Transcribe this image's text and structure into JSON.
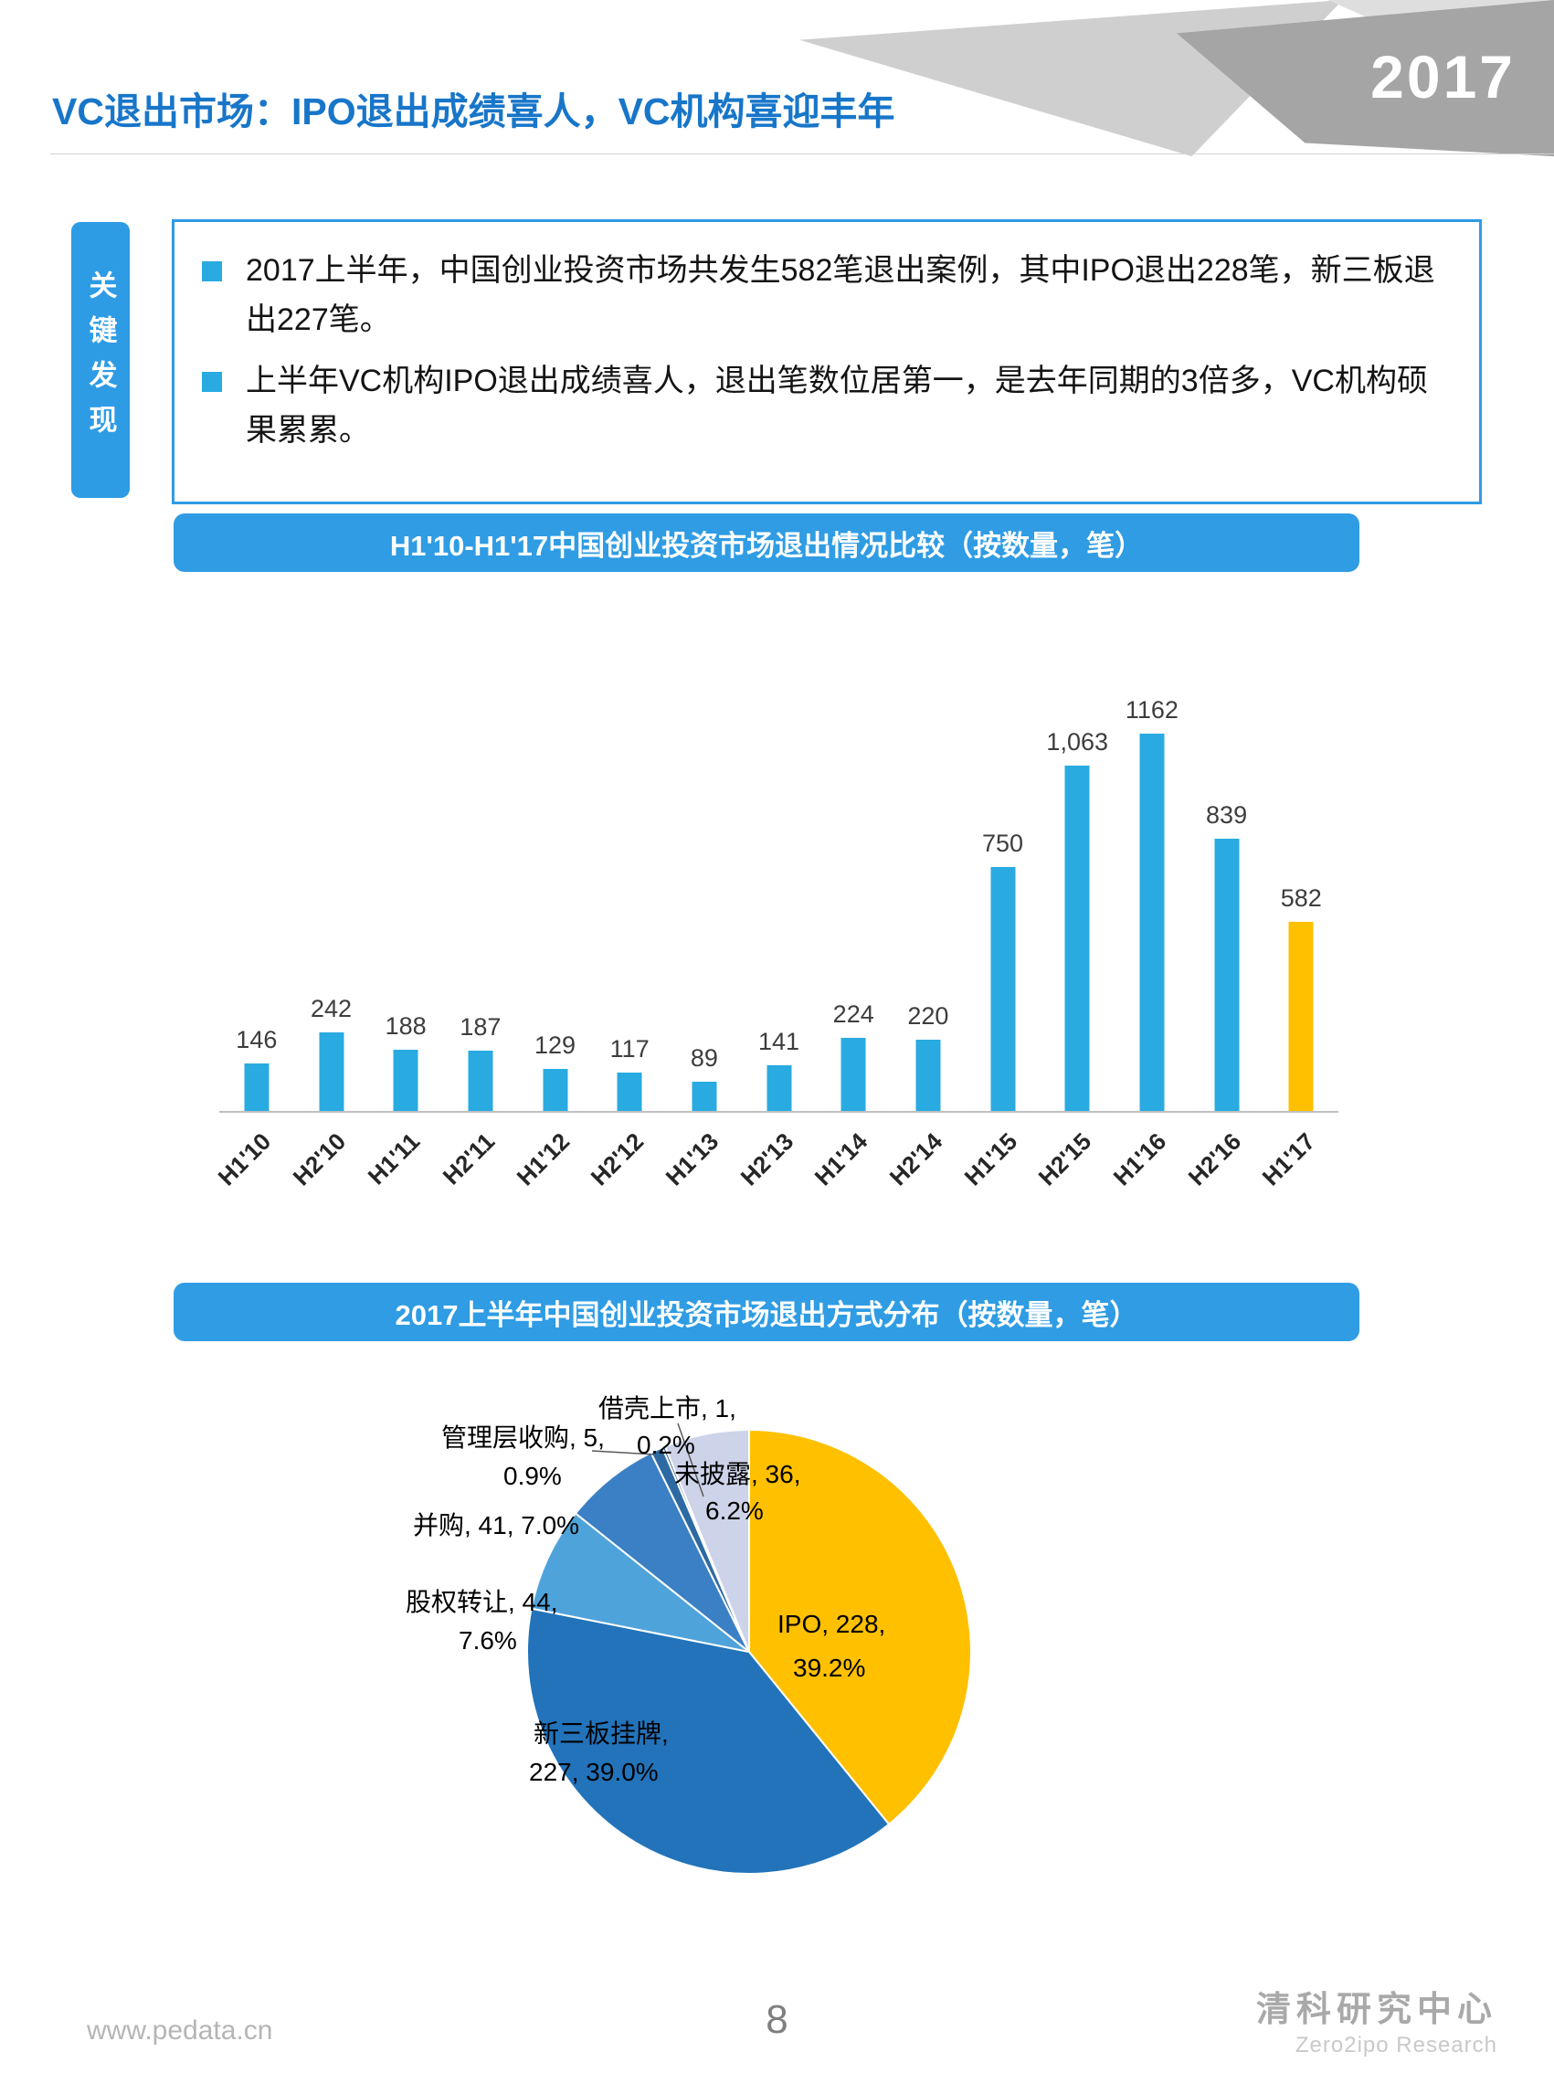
{
  "page": {
    "title": "VC退出市场：IPO退出成绩喜人，VC机构喜迎丰年",
    "year_badge": "2017",
    "footer": {
      "website": "www.pedata.cn",
      "page_number": "8",
      "brand_cn": "清科研究中心",
      "brand_en": "Zero2ipo Research"
    }
  },
  "key_findings": {
    "sidebar_label": "关键发现",
    "bullets": [
      "2017上半年，中国创业投资市场共发生582笔退出案例，其中IPO退出228笔，新三板退出227笔。",
      "上半年VC机构IPO退出成绩喜人，退出笔数位居第一，是去年同期的3倍多，VC机构硕果累累。"
    ]
  },
  "colors": {
    "title_blue": "#1876C9",
    "banner_blue": "#2F9CE4",
    "bullet_square": "#29ABE2"
  },
  "chart_data": [
    {
      "type": "bar",
      "title": "H1'10-H1'17中国创业投资市场退出情况比较（按数量，笔）",
      "categories": [
        "H1'10",
        "H2'10",
        "H1'11",
        "H2'11",
        "H1'12",
        "H2'12",
        "H1'13",
        "H2'13",
        "H1'14",
        "H2'14",
        "H1'15",
        "H2'15",
        "H1'16",
        "H2'16",
        "H1'17"
      ],
      "values": [
        146,
        242,
        188,
        187,
        129,
        117,
        89,
        141,
        224,
        220,
        750,
        1063,
        1162,
        839,
        582
      ],
      "value_labels": [
        "146",
        "242",
        "188",
        "187",
        "129",
        "117",
        "89",
        "141",
        "224",
        "220",
        "750",
        "1,063",
        "1162",
        "839",
        "582"
      ],
      "bar_color": "#29ABE2",
      "highlight_color": "#FFC000",
      "highlight_index": 14,
      "xlabel": "",
      "ylabel": "",
      "ylim": [
        0,
        1200
      ],
      "grid": false,
      "legend": "none"
    },
    {
      "type": "pie",
      "title": "2017上半年中国创业投资市场退出方式分布（按数量，笔）",
      "start_angle": "12 o'clock",
      "direction": "clockwise",
      "slices": [
        {
          "name": "IPO",
          "value": 228,
          "pct": 39.2,
          "color": "#FFC000",
          "callout": [
            "IPO, 228,",
            "39.2%"
          ]
        },
        {
          "name": "新三板挂牌",
          "value": 227,
          "pct": 39.0,
          "color": "#2273BA",
          "callout": [
            "新三板挂牌,",
            "227, 39.0%"
          ]
        },
        {
          "name": "股权转让",
          "value": 44,
          "pct": 7.6,
          "color": "#4FA3DB",
          "callout": [
            "股权转让, 44,",
            "7.6%"
          ]
        },
        {
          "name": "并购",
          "value": 41,
          "pct": 7.0,
          "color": "#3B80C4",
          "callout": [
            "并购, 41, 7.0%"
          ]
        },
        {
          "name": "管理层收购",
          "value": 5,
          "pct": 0.9,
          "color": "#2D6AA3",
          "callout": [
            "管理层收购, 5,",
            "0.9%"
          ]
        },
        {
          "name": "借壳上市",
          "value": 1,
          "pct": 0.2,
          "color": "#1F4E79",
          "callout": [
            "借壳上市, 1,",
            "0.2%"
          ]
        },
        {
          "name": "未披露",
          "value": 36,
          "pct": 6.2,
          "color": "#CDD3E8",
          "callout": [
            "未披露, 36,",
            "6.2%"
          ]
        }
      ]
    }
  ]
}
